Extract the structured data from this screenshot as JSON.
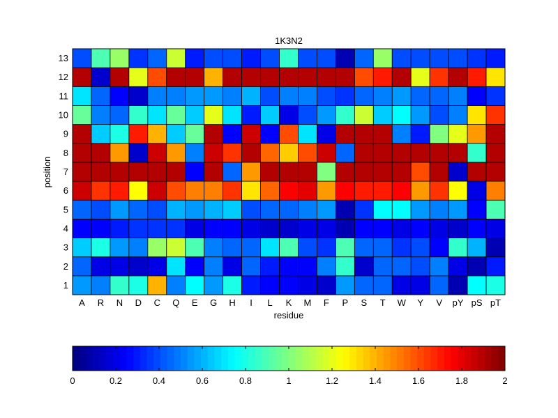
{
  "chart_data": {
    "type": "heatmap",
    "title": "1K3N2",
    "xlabel": "residue",
    "ylabel": "position",
    "x_categories": [
      "A",
      "R",
      "N",
      "D",
      "C",
      "Q",
      "E",
      "G",
      "H",
      "I",
      "L",
      "K",
      "M",
      "F",
      "P",
      "S",
      "T",
      "W",
      "Y",
      "V",
      "pY",
      "pS",
      "pT"
    ],
    "y_categories": [
      "1",
      "2",
      "3",
      "4",
      "5",
      "6",
      "7",
      "8",
      "9",
      "10",
      "11",
      "12",
      "13"
    ],
    "values": [
      [
        0.55,
        0.5,
        0.85,
        0.8,
        1.4,
        0.5,
        0.75,
        0.55,
        0.8,
        0.3,
        0.25,
        0.25,
        0.2,
        0.15,
        0.55,
        0.45,
        0.45,
        0.2,
        0.2,
        0.45,
        0.1,
        0.75,
        0.8
      ],
      [
        0.45,
        0.2,
        0.2,
        0.15,
        0.2,
        0.7,
        0.25,
        0.5,
        0.2,
        0.45,
        0.3,
        0.25,
        0.25,
        0.5,
        0.85,
        0.15,
        0.45,
        0.45,
        0.4,
        0.5,
        0.2,
        0.1,
        0.3
      ],
      [
        0.65,
        0.8,
        0.55,
        0.5,
        1.05,
        1.15,
        0.9,
        0.5,
        0.45,
        0.45,
        0.7,
        0.9,
        0.4,
        0.35,
        0.9,
        0.45,
        0.45,
        0.35,
        0.4,
        0.25,
        0.85,
        0.6,
        0.1
      ],
      [
        0.25,
        0.25,
        0.3,
        0.35,
        0.35,
        0.35,
        0.2,
        0.25,
        0.25,
        0.2,
        0.15,
        0.15,
        0.2,
        0.2,
        0.1,
        0.25,
        0.25,
        0.2,
        0.25,
        0.2,
        0.15,
        0.25,
        0.2
      ],
      [
        0.45,
        0.4,
        0.55,
        0.45,
        0.4,
        0.6,
        0.55,
        0.6,
        0.65,
        0.4,
        0.45,
        0.45,
        0.5,
        0.55,
        0.1,
        0.35,
        0.75,
        0.75,
        0.55,
        0.5,
        0.55,
        0.25,
        0.9
      ],
      [
        1.85,
        1.65,
        1.7,
        1.25,
        1.85,
        1.6,
        1.5,
        1.5,
        1.65,
        1.3,
        1.55,
        1.75,
        1.8,
        1.45,
        1.75,
        1.7,
        1.7,
        1.75,
        1.45,
        1.65,
        1.25,
        0.2,
        1.5
      ],
      [
        1.9,
        1.9,
        1.9,
        1.9,
        1.9,
        1.9,
        0.25,
        1.9,
        0.45,
        1.45,
        1.9,
        1.9,
        1.9,
        1.0,
        1.9,
        1.9,
        1.9,
        1.9,
        1.6,
        1.9,
        0.15,
        1.9,
        1.9
      ],
      [
        1.9,
        1.9,
        1.45,
        0.15,
        1.85,
        1.45,
        0.5,
        1.85,
        1.65,
        1.9,
        1.55,
        1.35,
        1.6,
        1.85,
        0.45,
        1.9,
        1.9,
        1.9,
        1.9,
        1.9,
        1.9,
        0.85,
        1.9
      ],
      [
        1.9,
        0.65,
        0.8,
        1.7,
        1.4,
        0.65,
        0.95,
        1.9,
        0.25,
        1.85,
        0.25,
        1.6,
        0.7,
        0.2,
        1.9,
        1.9,
        1.9,
        0.5,
        0.3,
        1.0,
        1.2,
        1.45,
        1.9
      ],
      [
        0.95,
        0.5,
        0.45,
        0.85,
        0.7,
        0.95,
        0.65,
        1.2,
        0.7,
        0.3,
        0.65,
        0.2,
        0.4,
        0.55,
        0.85,
        1.15,
        0.65,
        0.75,
        0.55,
        0.4,
        0.5,
        1.3,
        1.65
      ],
      [
        0.7,
        0.45,
        0.25,
        0.15,
        0.5,
        0.5,
        0.55,
        0.55,
        0.5,
        0.6,
        0.4,
        0.5,
        0.5,
        0.4,
        0.35,
        0.45,
        0.5,
        0.55,
        0.45,
        0.45,
        0.5,
        0.25,
        0.35
      ],
      [
        1.9,
        0.15,
        1.9,
        1.2,
        1.6,
        1.9,
        1.9,
        1.4,
        1.9,
        1.9,
        1.9,
        1.9,
        1.9,
        1.9,
        1.9,
        1.6,
        1.7,
        1.9,
        1.2,
        1.65,
        1.9,
        1.7,
        1.3
      ],
      [
        0.4,
        0.9,
        1.05,
        0.35,
        0.45,
        1.15,
        0.3,
        0.4,
        0.4,
        0.3,
        0.4,
        0.85,
        0.4,
        0.4,
        0.1,
        0.45,
        1.05,
        0.4,
        0.4,
        0.4,
        0.4,
        0.35,
        0.3
      ]
    ],
    "colorbar": {
      "colormap": "jet",
      "range": [
        0,
        2
      ],
      "ticks": [
        "0",
        "0.2",
        "0.4",
        "0.6",
        "0.8",
        "1",
        "1.2",
        "1.4",
        "1.6",
        "1.8",
        "2"
      ],
      "orientation": "horizontal"
    },
    "grid": false
  }
}
